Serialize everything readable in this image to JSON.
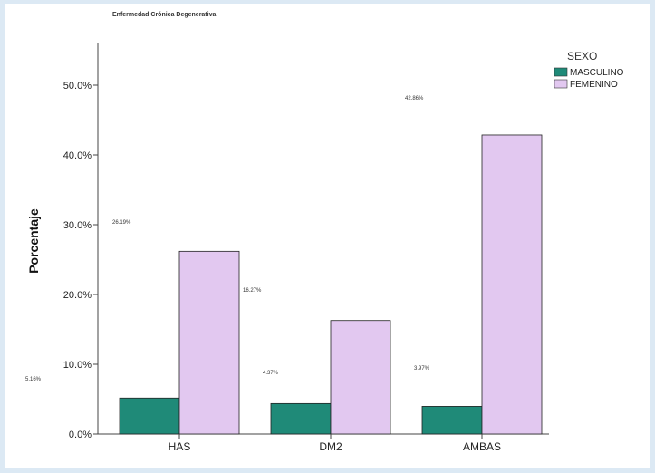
{
  "chart_data": {
    "type": "bar",
    "title": "Enfermedad Crónica Degenerativa",
    "xlabel": "",
    "ylabel": "Porcentaje",
    "ylim": [
      0,
      55
    ],
    "yticks": [
      "0.0%",
      "10.0%",
      "20.0%",
      "30.0%",
      "40.0%",
      "50.0%"
    ],
    "categories": [
      "HAS",
      "DM2",
      "AMBAS"
    ],
    "series": [
      {
        "name": "MASCULINO",
        "color": "#1f8a78",
        "values": [
          5.16,
          4.37,
          3.97
        ],
        "labels": [
          "5.16%",
          "4.37%",
          "3.97%"
        ]
      },
      {
        "name": "FEMENINO",
        "color": "#e2c8f0",
        "values": [
          26.19,
          16.27,
          42.86
        ],
        "labels": [
          "26.19%",
          "16.27%",
          "42.86%"
        ]
      }
    ],
    "legend": {
      "title": "SEXO",
      "position": "top-right"
    },
    "grid": false
  }
}
